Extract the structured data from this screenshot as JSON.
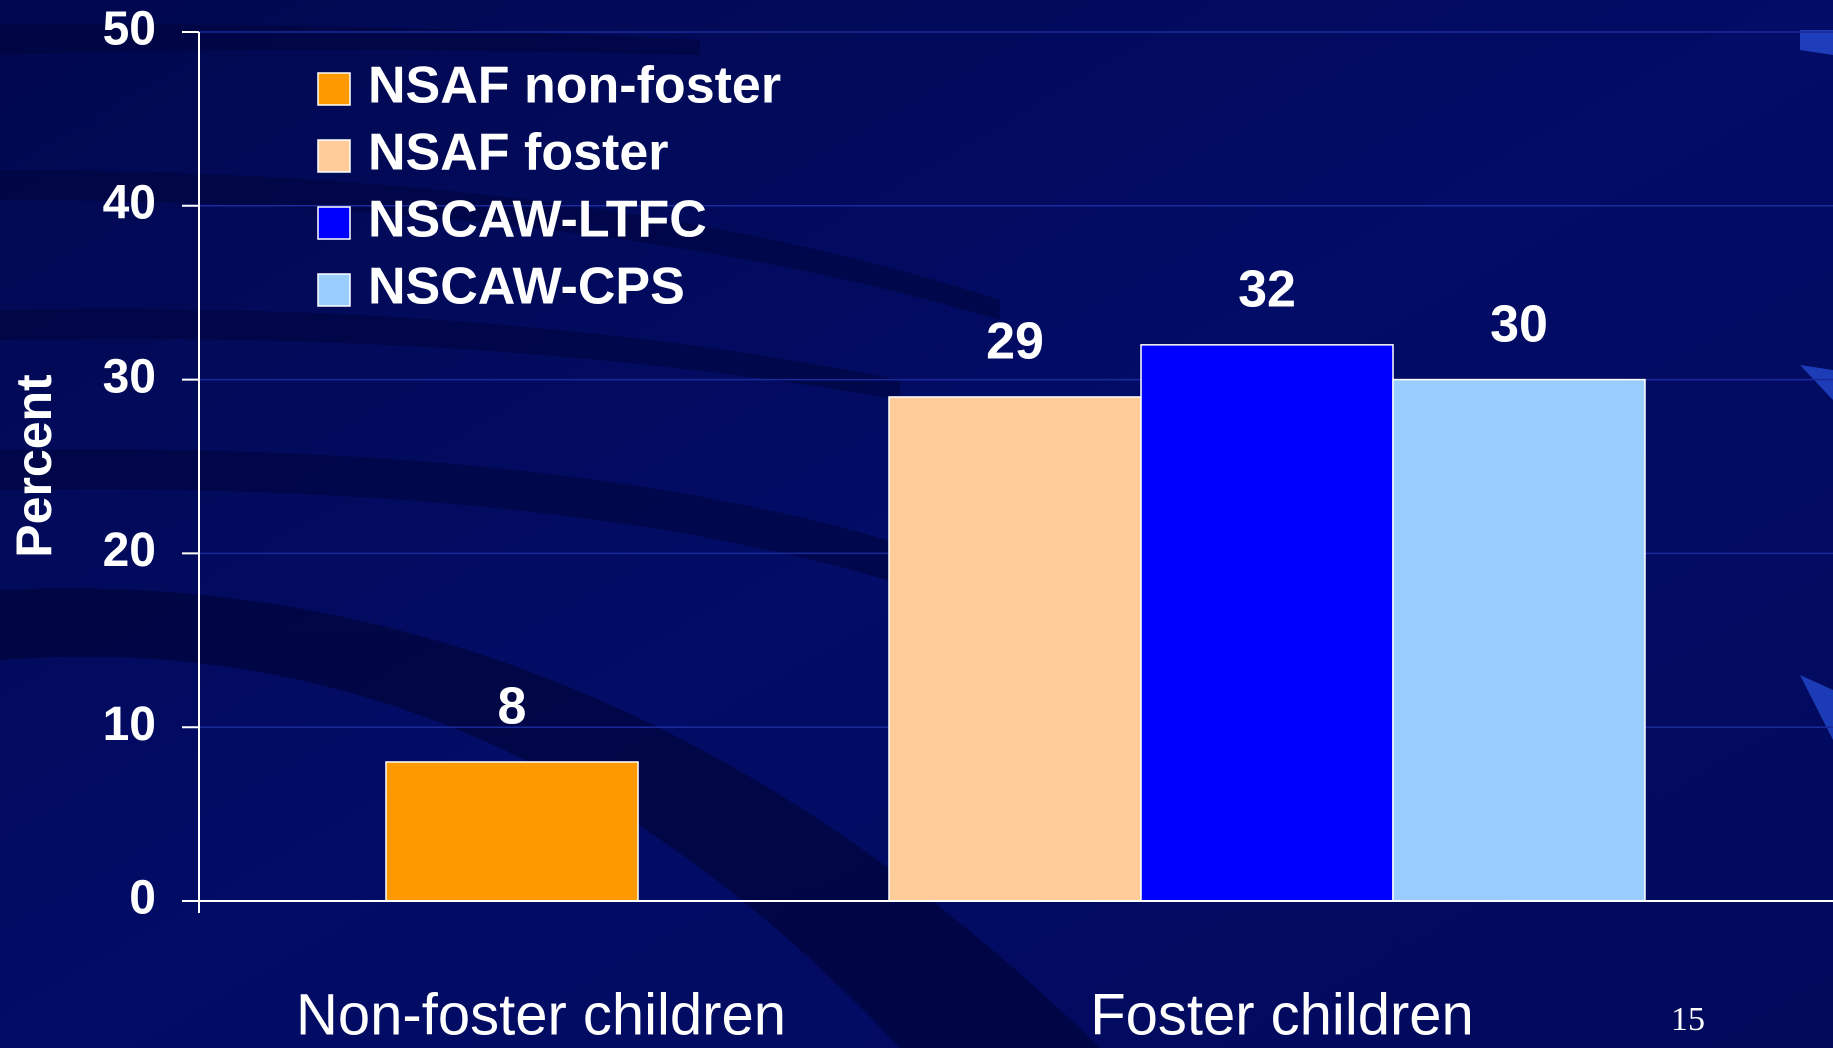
{
  "chart_data": {
    "type": "bar",
    "y_label": "Percent",
    "categories": [
      "Non-foster children",
      "Foster children"
    ],
    "series": [
      {
        "name": "NSAF non-foster",
        "color": "#ff9900",
        "values": [
          8,
          null
        ]
      },
      {
        "name": "NSAF foster",
        "color": "#ffcc99",
        "values": [
          null,
          29
        ]
      },
      {
        "name": "NSCAW-LTFC",
        "color": "#0000ff",
        "values": [
          null,
          32
        ]
      },
      {
        "name": "NSCAW-CPS",
        "color": "#99ccff",
        "values": [
          null,
          30
        ]
      }
    ],
    "ylim": [
      0,
      50
    ],
    "yticks": [
      0,
      10,
      20,
      30,
      40,
      50
    ],
    "grid": true,
    "legend": "upper left"
  },
  "slide_number": "15"
}
